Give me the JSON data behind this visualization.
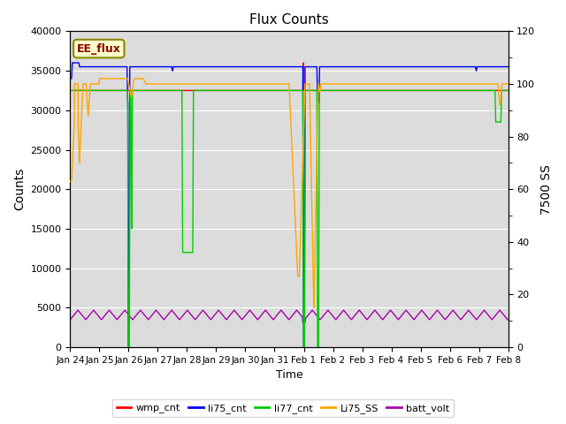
{
  "title": "Flux Counts",
  "xlabel": "Time",
  "ylabel_left": "Counts",
  "ylabel_right": "7500 SS",
  "annotation": "EE_flux",
  "ylim_left": [
    0,
    40000
  ],
  "ylim_right": [
    0,
    120
  ],
  "x_tick_labels": [
    "Jan 24",
    "Jan 25",
    "Jan 26",
    "Jan 27",
    "Jan 28",
    "Jan 29",
    "Jan 30",
    "Jan 31",
    "Feb 1",
    "Feb 2",
    "Feb 3",
    "Feb 4",
    "Feb 5",
    "Feb 6",
    "Feb 7",
    "Feb 8"
  ],
  "background_color": "#dcdcdc",
  "colors": {
    "wmp_cnt": "#ff0000",
    "li75_cnt": "#0000ff",
    "li77_cnt": "#00cc00",
    "Li75_SS": "#ffa500",
    "batt_volt": "#aa00aa"
  },
  "legend_labels": [
    "wmp_cnt",
    "li75_cnt",
    "li77_cnt",
    "Li75_SS",
    "batt_volt"
  ]
}
